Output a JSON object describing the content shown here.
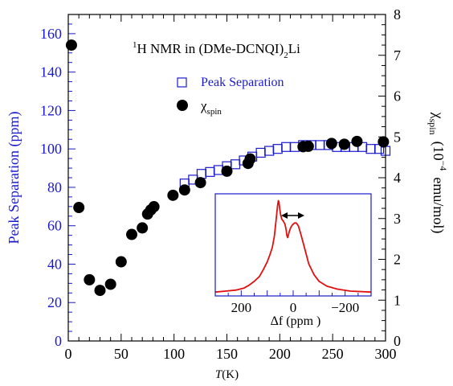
{
  "colors": {
    "left_axis": "#1a1acc",
    "right_axis": "#000000",
    "open_squares": "#1a1acc",
    "filled_circles": "#000000",
    "inset_curve": "#e01010",
    "inset_frame": "#1a1acc"
  },
  "chart_data": [
    {
      "type": "scatter",
      "title_parts": {
        "sup": "1",
        "main": "H NMR in (DMe-DCNQI)",
        "sub": "2",
        "tail": "Li"
      },
      "xlabel": {
        "italic": "T",
        "rest": "(K)"
      },
      "ylabel_left": "Peak Separation (ppm)",
      "ylabel_right_parts": {
        "chi": "χ",
        "sub": "spin",
        "open": "(10",
        "exp": "−4",
        "units": "emu/mol)"
      },
      "xlim": [
        0,
        300
      ],
      "ylim_left": [
        0,
        170
      ],
      "ylim_right": [
        0,
        8
      ],
      "x_ticks": [
        "0",
        "50",
        "100",
        "150",
        "200",
        "250",
        "300"
      ],
      "y_left_ticks": [
        "0",
        "20",
        "40",
        "60",
        "80",
        "100",
        "120",
        "140",
        "160"
      ],
      "y_right_ticks": [
        "0",
        "1",
        "2",
        "3",
        "4",
        "5",
        "6",
        "7",
        "8"
      ],
      "legend": {
        "placement": "upper-right",
        "peak_label": "Peak Separation",
        "chi_label": "χ",
        "chi_sub": "spin"
      },
      "series": [
        {
          "name": "Peak Separation",
          "axis": "left",
          "marker": "open-square",
          "points": [
            [
              110,
              82
            ],
            [
              118,
              84
            ],
            [
              126,
              87
            ],
            [
              134,
              88
            ],
            [
              142,
              89
            ],
            [
              150,
              91
            ],
            [
              158,
              92
            ],
            [
              166,
              94
            ],
            [
              174,
              96
            ],
            [
              182,
              98
            ],
            [
              190,
              99
            ],
            [
              198,
              100
            ],
            [
              206,
              101
            ],
            [
              214,
              101
            ],
            [
              222,
              102
            ],
            [
              230,
              102
            ],
            [
              238,
              102
            ],
            [
              246,
              102
            ],
            [
              254,
              101
            ],
            [
              262,
              101
            ],
            [
              270,
              101
            ],
            [
              278,
              101
            ],
            [
              286,
              100
            ],
            [
              294,
              100
            ],
            [
              300,
              99
            ]
          ]
        },
        {
          "name": "χspin",
          "axis": "right",
          "marker": "filled-circle",
          "points": [
            [
              3,
              7.25
            ],
            [
              10,
              3.27
            ],
            [
              20,
              1.5
            ],
            [
              30,
              1.24
            ],
            [
              40,
              1.39
            ],
            [
              50,
              1.94
            ],
            [
              60,
              2.61
            ],
            [
              70,
              2.77
            ],
            [
              75,
              3.11
            ],
            [
              78,
              3.21
            ],
            [
              81,
              3.29
            ],
            [
              99,
              3.57
            ],
            [
              110,
              3.7
            ],
            [
              125,
              3.88
            ],
            [
              150,
              4.16
            ],
            [
              170,
              4.35
            ],
            [
              172,
              4.46
            ],
            [
              222,
              4.76
            ],
            [
              227,
              4.77
            ],
            [
              249,
              4.84
            ],
            [
              261,
              4.82
            ],
            [
              273,
              4.89
            ],
            [
              298,
              4.88
            ]
          ]
        }
      ]
    },
    {
      "type": "line",
      "role": "inset",
      "xlabel": "Δf  (ppm )",
      "xlim": [
        300,
        -300
      ],
      "ylim": [
        0,
        1.05
      ],
      "x_ticks": [
        "200",
        "0",
        "−200"
      ],
      "annotation": "double-headed arrow between the two peaks",
      "series": [
        {
          "points": [
            [
              300,
              0.04
            ],
            [
              260,
              0.05
            ],
            [
              220,
              0.06
            ],
            [
              190,
              0.08
            ],
            [
              170,
              0.11
            ],
            [
              150,
              0.15
            ],
            [
              130,
              0.2
            ],
            [
              115,
              0.27
            ],
            [
              100,
              0.35
            ],
            [
              90,
              0.42
            ],
            [
              80,
              0.5
            ],
            [
              72,
              0.62
            ],
            [
              65,
              0.8
            ],
            [
              60,
              0.93
            ],
            [
              57,
              0.98
            ],
            [
              55,
              0.97
            ],
            [
              52,
              0.9
            ],
            [
              48,
              0.83
            ],
            [
              44,
              0.79
            ],
            [
              38,
              0.77
            ],
            [
              32,
              0.74
            ],
            [
              27,
              0.68
            ],
            [
              24,
              0.62
            ],
            [
              21,
              0.6
            ],
            [
              18,
              0.63
            ],
            [
              15,
              0.66
            ],
            [
              10,
              0.7
            ],
            [
              3,
              0.73
            ],
            [
              -5,
              0.75
            ],
            [
              -12,
              0.75
            ],
            [
              -20,
              0.72
            ],
            [
              -30,
              0.63
            ],
            [
              -45,
              0.48
            ],
            [
              -60,
              0.33
            ],
            [
              -80,
              0.22
            ],
            [
              -100,
              0.15
            ],
            [
              -130,
              0.1
            ],
            [
              -170,
              0.07
            ],
            [
              -220,
              0.05
            ],
            [
              -300,
              0.04
            ]
          ]
        }
      ]
    }
  ]
}
